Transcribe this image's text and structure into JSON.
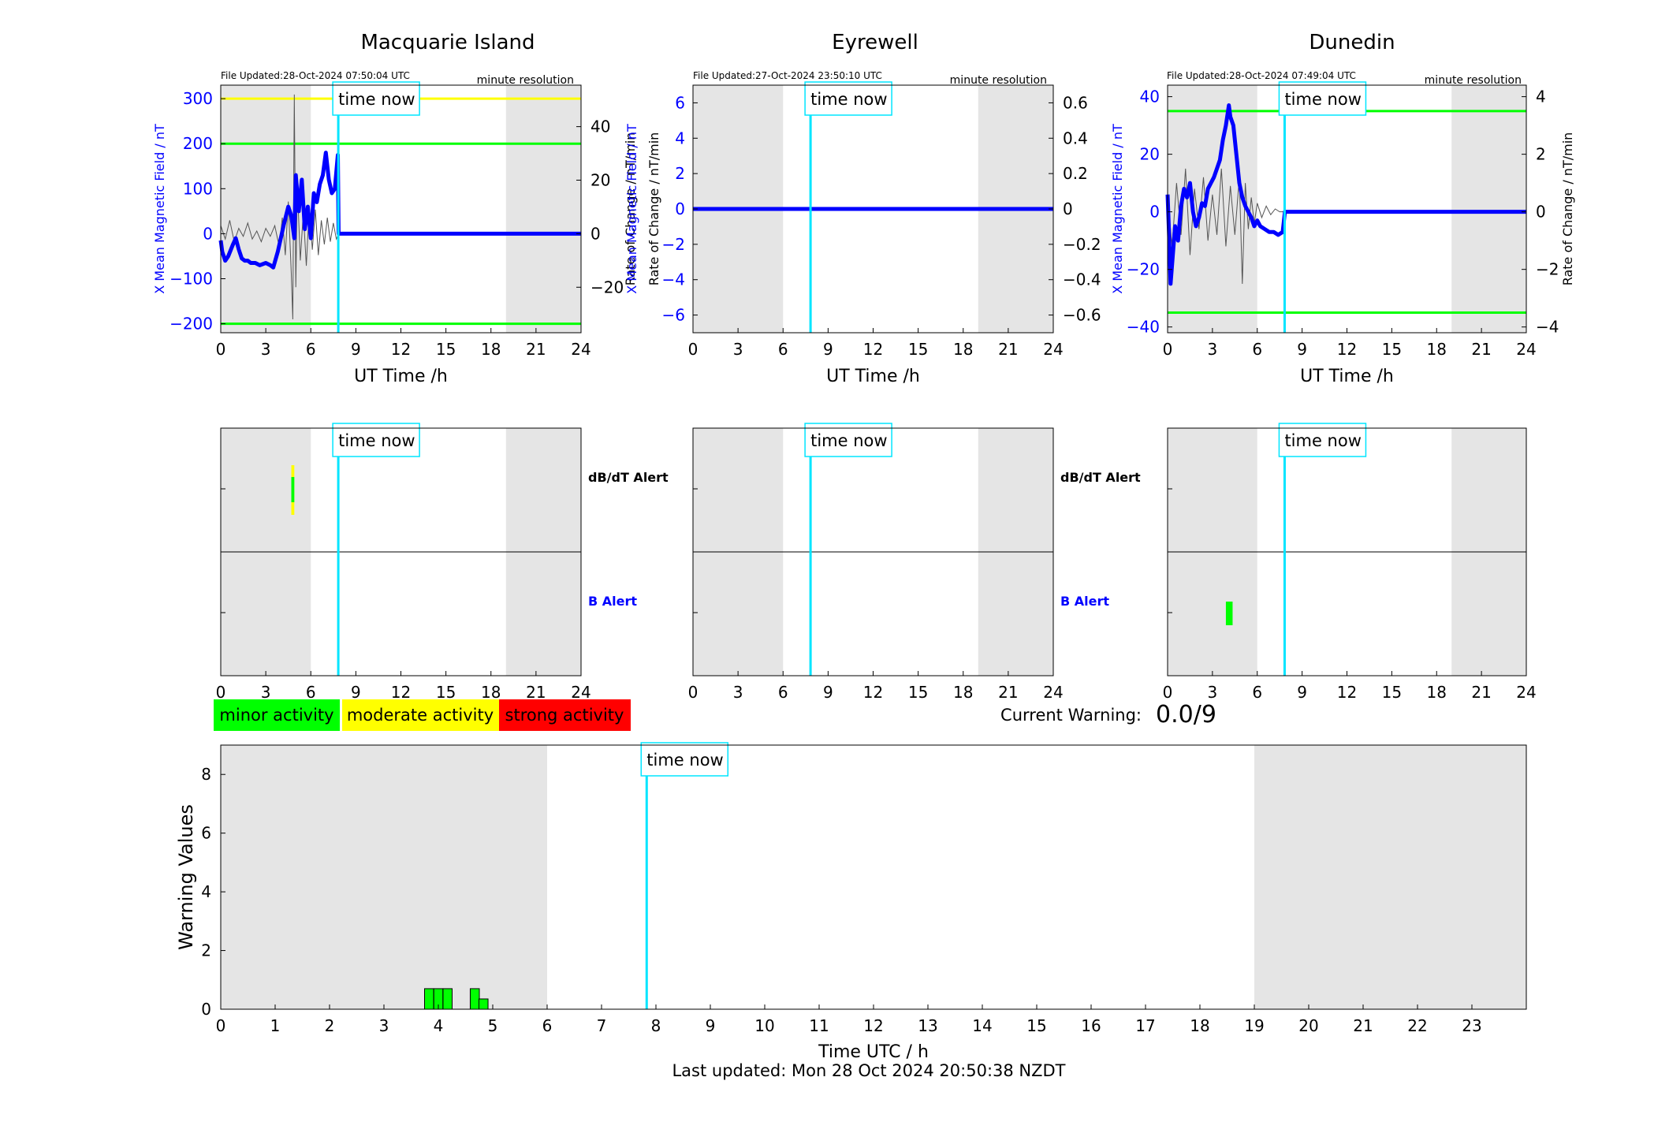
{
  "colors": {
    "x_series": "#0000ff",
    "rate_series": "#555555",
    "time_now": "#00e5ff",
    "threshold_green": "#00ff00",
    "threshold_yellow": "#ffff00",
    "shade": "#e5e5e5",
    "minor": "#00ff00",
    "moderate": "#ffff00",
    "strong": "#ff0000",
    "b_alert_label": "#0000ff"
  },
  "common": {
    "time_now_label": "time now",
    "resolution_label": "minute resolution",
    "x_axis_label": "UT Time /h",
    "time_now_hours": 7.83,
    "shade_ranges_h": [
      [
        0,
        6
      ],
      [
        19,
        24
      ]
    ],
    "x_ticks": [
      0,
      3,
      6,
      9,
      12,
      15,
      18,
      21,
      24
    ]
  },
  "alerts": {
    "dbdt_label": "dB/dT Alert",
    "b_label": "B Alert"
  },
  "legend": {
    "minor": "minor activity",
    "moderate": "moderate activity",
    "strong": "strong activity"
  },
  "current_warning": {
    "label": "Current Warning:",
    "value": "0.0/9"
  },
  "footer": {
    "last_updated": "Last updated: Mon 28 Oct 2024 20:50:38 NZDT"
  },
  "chart_data": [
    {
      "type": "line",
      "station": "Macquarie Island",
      "file_updated": "File Updated:28-Oct-2024 07:50:04 UTC",
      "ylabel": "X Mean Magnetic Field / nT",
      "y2label": "Rate of Change / nT/min",
      "ylim": [
        -220,
        330
      ],
      "y_ticks": [
        -200,
        -100,
        0,
        100,
        200,
        300
      ],
      "y2lim": [
        -37,
        55.5
      ],
      "y2_ticks": [
        -20,
        0,
        20,
        40
      ],
      "thresholds": [
        {
          "value": 300,
          "color": "yellow"
        },
        {
          "value": 200,
          "color": "green"
        },
        {
          "value": -200,
          "color": "green"
        }
      ],
      "x_series": {
        "x": [
          0,
          0.1,
          0.3,
          0.5,
          0.8,
          1.0,
          1.2,
          1.4,
          1.6,
          1.8,
          2.0,
          2.3,
          2.6,
          3.0,
          3.3,
          3.5,
          3.8,
          4.0,
          4.2,
          4.5,
          4.7,
          4.9,
          5.0,
          5.2,
          5.4,
          5.6,
          5.8,
          6.0,
          6.2,
          6.4,
          6.6,
          6.8,
          7.0,
          7.2,
          7.4,
          7.6,
          7.8,
          7.85,
          10,
          14,
          18,
          22,
          24
        ],
        "y": [
          -15,
          -40,
          -60,
          -50,
          -25,
          -10,
          -35,
          -55,
          -60,
          -60,
          -65,
          -65,
          -70,
          -65,
          -70,
          -75,
          -40,
          -10,
          20,
          60,
          40,
          -10,
          130,
          50,
          120,
          10,
          60,
          -10,
          90,
          70,
          110,
          130,
          180,
          120,
          90,
          100,
          175,
          0,
          0,
          0,
          0,
          0,
          0
        ]
      },
      "rate_series": {
        "x": [
          0,
          0.3,
          0.6,
          0.9,
          1.2,
          1.5,
          1.8,
          2.1,
          2.4,
          2.7,
          3.0,
          3.3,
          3.6,
          3.9,
          4.1,
          4.3,
          4.5,
          4.7,
          4.8,
          4.9,
          5.0,
          5.1,
          5.3,
          5.5,
          5.7,
          5.9,
          6.1,
          6.3,
          6.5,
          6.7,
          6.9,
          7.1,
          7.3,
          7.5,
          7.7,
          7.85
        ],
        "y": [
          3,
          -2,
          5,
          -3,
          2,
          -1,
          4,
          -2,
          1,
          -3,
          2,
          -1,
          3,
          -5,
          6,
          -8,
          12,
          -15,
          -32,
          52,
          -20,
          18,
          -10,
          8,
          -12,
          10,
          -6,
          9,
          -8,
          5,
          -4,
          6,
          -3,
          4,
          -2,
          0
        ]
      }
    },
    {
      "type": "line",
      "station": "Eyrewell",
      "file_updated": "File Updated:27-Oct-2024 23:50:10 UTC",
      "ylabel": "X Mean Magnetic Field / nT",
      "y2label": "Rate of Change / nT/min",
      "ylim": [
        -7,
        7
      ],
      "y_ticks": [
        -6,
        -4,
        -2,
        0,
        2,
        4,
        6
      ],
      "y2lim": [
        -0.7,
        0.7
      ],
      "y2_ticks": [
        -0.6,
        -0.4,
        -0.2,
        0,
        0.2,
        0.4,
        0.6
      ],
      "thresholds": [],
      "x_series": {
        "x": [
          0,
          24
        ],
        "y": [
          0,
          0
        ]
      },
      "rate_series": {
        "x": [
          0,
          24
        ],
        "y": [
          0,
          0
        ]
      }
    },
    {
      "type": "line",
      "station": "Dunedin",
      "file_updated": "File Updated:28-Oct-2024 07:49:04 UTC",
      "ylabel": "X Mean Magnetic Field / nT",
      "y2label": "Rate of Change / nT/min",
      "ylim": [
        -42,
        44
      ],
      "y_ticks": [
        -40,
        -20,
        0,
        20,
        40
      ],
      "y2lim": [
        -4.2,
        4.4
      ],
      "y2_ticks": [
        -4,
        -2,
        0,
        2,
        4
      ],
      "thresholds": [
        {
          "value": 35,
          "color": "green"
        },
        {
          "value": -35,
          "color": "green"
        }
      ],
      "x_series": {
        "x": [
          0,
          0.1,
          0.2,
          0.35,
          0.5,
          0.7,
          0.9,
          1.1,
          1.3,
          1.5,
          1.7,
          1.9,
          2.1,
          2.3,
          2.5,
          2.7,
          2.9,
          3.1,
          3.3,
          3.5,
          3.7,
          3.9,
          4.1,
          4.2,
          4.4,
          4.6,
          4.8,
          5.0,
          5.2,
          5.4,
          5.6,
          5.8,
          6.0,
          6.2,
          6.5,
          6.8,
          7.1,
          7.4,
          7.7,
          7.85,
          10,
          14,
          18,
          22,
          24
        ],
        "y": [
          6,
          -8,
          -25,
          -15,
          -5,
          -10,
          2,
          8,
          5,
          10,
          0,
          -5,
          -2,
          3,
          2,
          8,
          10,
          12,
          15,
          18,
          25,
          30,
          37,
          33,
          30,
          20,
          10,
          5,
          2,
          0,
          -2,
          -5,
          -3,
          -5,
          -6,
          -7,
          -7,
          -8,
          -7,
          0,
          0,
          0,
          0,
          0,
          0
        ]
      },
      "rate_series": {
        "x": [
          0,
          0.3,
          0.6,
          0.9,
          1.2,
          1.5,
          1.8,
          2.1,
          2.4,
          2.7,
          3.0,
          3.3,
          3.6,
          3.9,
          4.2,
          4.5,
          4.8,
          5.0,
          5.2,
          5.4,
          5.6,
          5.8,
          6.0,
          6.3,
          6.6,
          6.9,
          7.2,
          7.5,
          7.85
        ],
        "y": [
          0.5,
          -1.2,
          1.0,
          -0.8,
          1.5,
          -1.5,
          0.8,
          -0.6,
          1.2,
          -1.0,
          0.6,
          -0.8,
          1.5,
          -1.2,
          0.9,
          -0.8,
          1.2,
          -2.5,
          1.0,
          -0.6,
          0.5,
          -0.4,
          0.3,
          -0.2,
          0.2,
          -0.1,
          0.1,
          0.0,
          0
        ]
      }
    },
    {
      "type": "bar",
      "ylabel": "Warning Values",
      "xlabel": "Time UTC / h",
      "xlim": [
        0,
        24
      ],
      "ylim": [
        0,
        9
      ],
      "x_ticks": [
        0,
        1,
        2,
        3,
        4,
        5,
        6,
        7,
        8,
        9,
        10,
        11,
        12,
        13,
        14,
        15,
        16,
        17,
        18,
        19,
        20,
        21,
        22,
        23
      ],
      "y_ticks": [
        0,
        2,
        4,
        6,
        8
      ],
      "shade_ranges_h": [
        [
          0,
          6
        ],
        [
          19,
          24
        ]
      ],
      "bar_width_h": 0.167,
      "bars": {
        "x": [
          3.83,
          4.0,
          4.17,
          4.67,
          4.83
        ],
        "y": [
          0.7,
          0.7,
          0.7,
          0.7,
          0.35
        ]
      }
    }
  ],
  "alert_panels": [
    {
      "station": "Macquarie Island",
      "dbdt_events": [
        {
          "start_h": 4.7,
          "end_h": 4.9,
          "level": "moderate",
          "inner_level": "minor"
        }
      ],
      "b_events": []
    },
    {
      "station": "Eyrewell",
      "dbdt_events": [],
      "b_events": []
    },
    {
      "station": "Dunedin",
      "dbdt_events": [],
      "b_events": [
        {
          "start_h": 3.9,
          "end_h": 4.35,
          "level": "minor"
        }
      ]
    }
  ]
}
